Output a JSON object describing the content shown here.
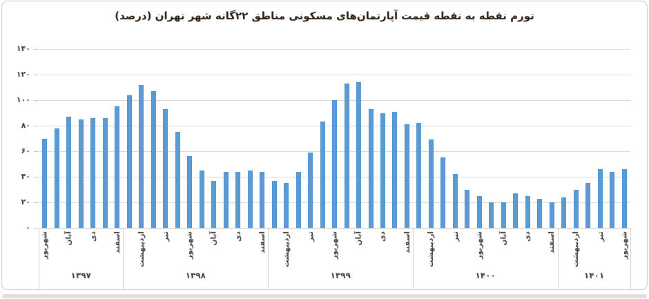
{
  "title": "تورم نقطه به نقطه قیمت آپارتمان‌های مسکونی مناطق ۲۲گانه شهر تهران (درصد)",
  "colors": {
    "bar": "#5B9BD5",
    "bar_border": "#4D8FCB",
    "gridline": "#D9D9D9",
    "axis_text": "#3F3F3F",
    "title_text": "#2B1C12",
    "frame_border": "#C9C9C9",
    "scrollbar": "#E0E0E0"
  },
  "chart_data": {
    "type": "bar",
    "title": "تورم نقطه به نقطه قیمت آپارتمان‌های مسکونی مناطق ۲۲گانه شهر تهران (درصد)",
    "ylabel": "درصد",
    "ylim": [
      0,
      140
    ],
    "grid": "horizontal",
    "legend": "none",
    "yticks": [
      {
        "v": 0,
        "label": "۰"
      },
      {
        "v": 20,
        "label": "۲۰"
      },
      {
        "v": 40,
        "label": "۴۰"
      },
      {
        "v": 60,
        "label": "۶۰"
      },
      {
        "v": 80,
        "label": "۸۰"
      },
      {
        "v": 100,
        "label": "۱۰۰"
      },
      {
        "v": 120,
        "label": "۱۲۰"
      },
      {
        "v": 140,
        "label": "۱۴۰"
      }
    ],
    "groups": [
      {
        "year": "۱۳۹۷",
        "values": [
          70,
          78,
          87,
          85,
          86,
          86,
          95
        ],
        "tick_labels": [
          "شهریور",
          null,
          "آبان",
          null,
          "دی",
          null,
          "اسفند"
        ]
      },
      {
        "year": "۱۳۹۸",
        "values": [
          104,
          112,
          107,
          93,
          75,
          56,
          45,
          37,
          44,
          44,
          45,
          44
        ],
        "tick_labels": [
          null,
          "اردیبهشت",
          null,
          "تیر",
          null,
          "شهریور",
          null,
          "آبان",
          null,
          "دی",
          null,
          "اسفند"
        ]
      },
      {
        "year": "۱۳۹۹",
        "values": [
          37,
          35,
          44,
          59,
          83,
          100,
          113,
          114,
          93,
          90,
          91,
          81
        ],
        "tick_labels": [
          null,
          "اردیبهشت",
          null,
          "تیر",
          null,
          "شهریور",
          null,
          "آبان",
          null,
          "دی",
          null,
          "اسفند"
        ]
      },
      {
        "year": "۱۴۰۰",
        "values": [
          82,
          69,
          55,
          42,
          30,
          25,
          20,
          20,
          27,
          25,
          23,
          20
        ],
        "tick_labels": [
          null,
          "اردیبهشت",
          null,
          "تیر",
          null,
          "شهریور",
          null,
          "آبان",
          null,
          "دی",
          null,
          "اسفند"
        ]
      },
      {
        "year": "۱۴۰۱",
        "values": [
          24,
          30,
          35,
          46,
          44,
          46
        ],
        "tick_labels": [
          null,
          "اردیبهشت",
          null,
          "تیر",
          null,
          "شهریور"
        ]
      }
    ]
  }
}
